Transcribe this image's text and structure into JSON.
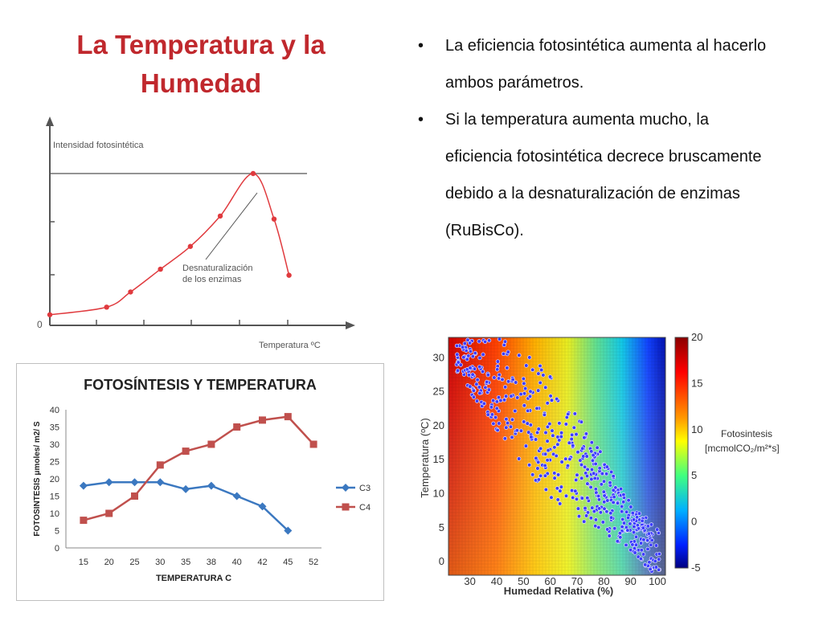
{
  "slide": {
    "title": "La Temperatura y la Humedad",
    "bullets": [
      "La eficiencia fotosintética aumenta al hacerlo ambos parámetros.",
      "Si la temperatura aumenta mucho, la eficiencia fotosintética decrece bruscamente debido a la desnaturalización de enzimas (RuBisCo)."
    ]
  },
  "colors": {
    "title": "#c0282d",
    "curve": "#e03a3e",
    "c3": "#3b78c0",
    "c4": "#c0504d"
  },
  "chart_data": [
    {
      "type": "line",
      "ylabel": "Intensidad fotosintética",
      "xlabel": "Temperatura ºC",
      "origin_label": "0",
      "annotation": "Desnaturalización de los enzimas",
      "x_scale": "relative",
      "points": [
        [
          0,
          0.07
        ],
        [
          0.19,
          0.12
        ],
        [
          0.27,
          0.22
        ],
        [
          0.37,
          0.37
        ],
        [
          0.47,
          0.52
        ],
        [
          0.57,
          0.72
        ],
        [
          0.68,
          1.0
        ],
        [
          0.75,
          0.7
        ],
        [
          0.8,
          0.33
        ]
      ],
      "max_reference_line": true,
      "grid": false
    },
    {
      "type": "line",
      "title": "FOTOSÍNTESIS Y TEMPERATURA",
      "xlabel": "TEMPERATURA C",
      "ylabel": "FOTOSINTESIS μmoles/ m2/ S",
      "categories": [
        "15",
        "20",
        "25",
        "30",
        "35",
        "38",
        "40",
        "42",
        "45",
        "52"
      ],
      "ylim": [
        0,
        40
      ],
      "yticks": [
        "0",
        "5",
        "10",
        "15",
        "20",
        "25",
        "30",
        "35",
        "40"
      ],
      "series": [
        {
          "name": "C3",
          "values": [
            18,
            19,
            19,
            19,
            17,
            18,
            15,
            12,
            5,
            null
          ]
        },
        {
          "name": "C4",
          "values": [
            8,
            10,
            15,
            24,
            28,
            30,
            35,
            37,
            38,
            30
          ]
        }
      ],
      "legend": "right",
      "grid": false
    },
    {
      "type": "heatmap",
      "xlabel": "Humedad Relativa (%)",
      "ylabel": "Temperatura (ºC)",
      "xticks": [
        "30",
        "40",
        "50",
        "60",
        "70",
        "80",
        "90",
        "100"
      ],
      "xlim": [
        22,
        103
      ],
      "yticks": [
        "0",
        "5",
        "10",
        "15",
        "20",
        "25",
        "30"
      ],
      "ylim": [
        -2,
        33
      ],
      "colorbar_label": "Fotosintesis [mcmolCO₂/m²*s]",
      "colorbar_ticks": [
        "20",
        "15",
        "10",
        "5",
        "0",
        "-5"
      ],
      "colorbar_range": [
        -5,
        20
      ],
      "overlay": "scatter"
    }
  ]
}
